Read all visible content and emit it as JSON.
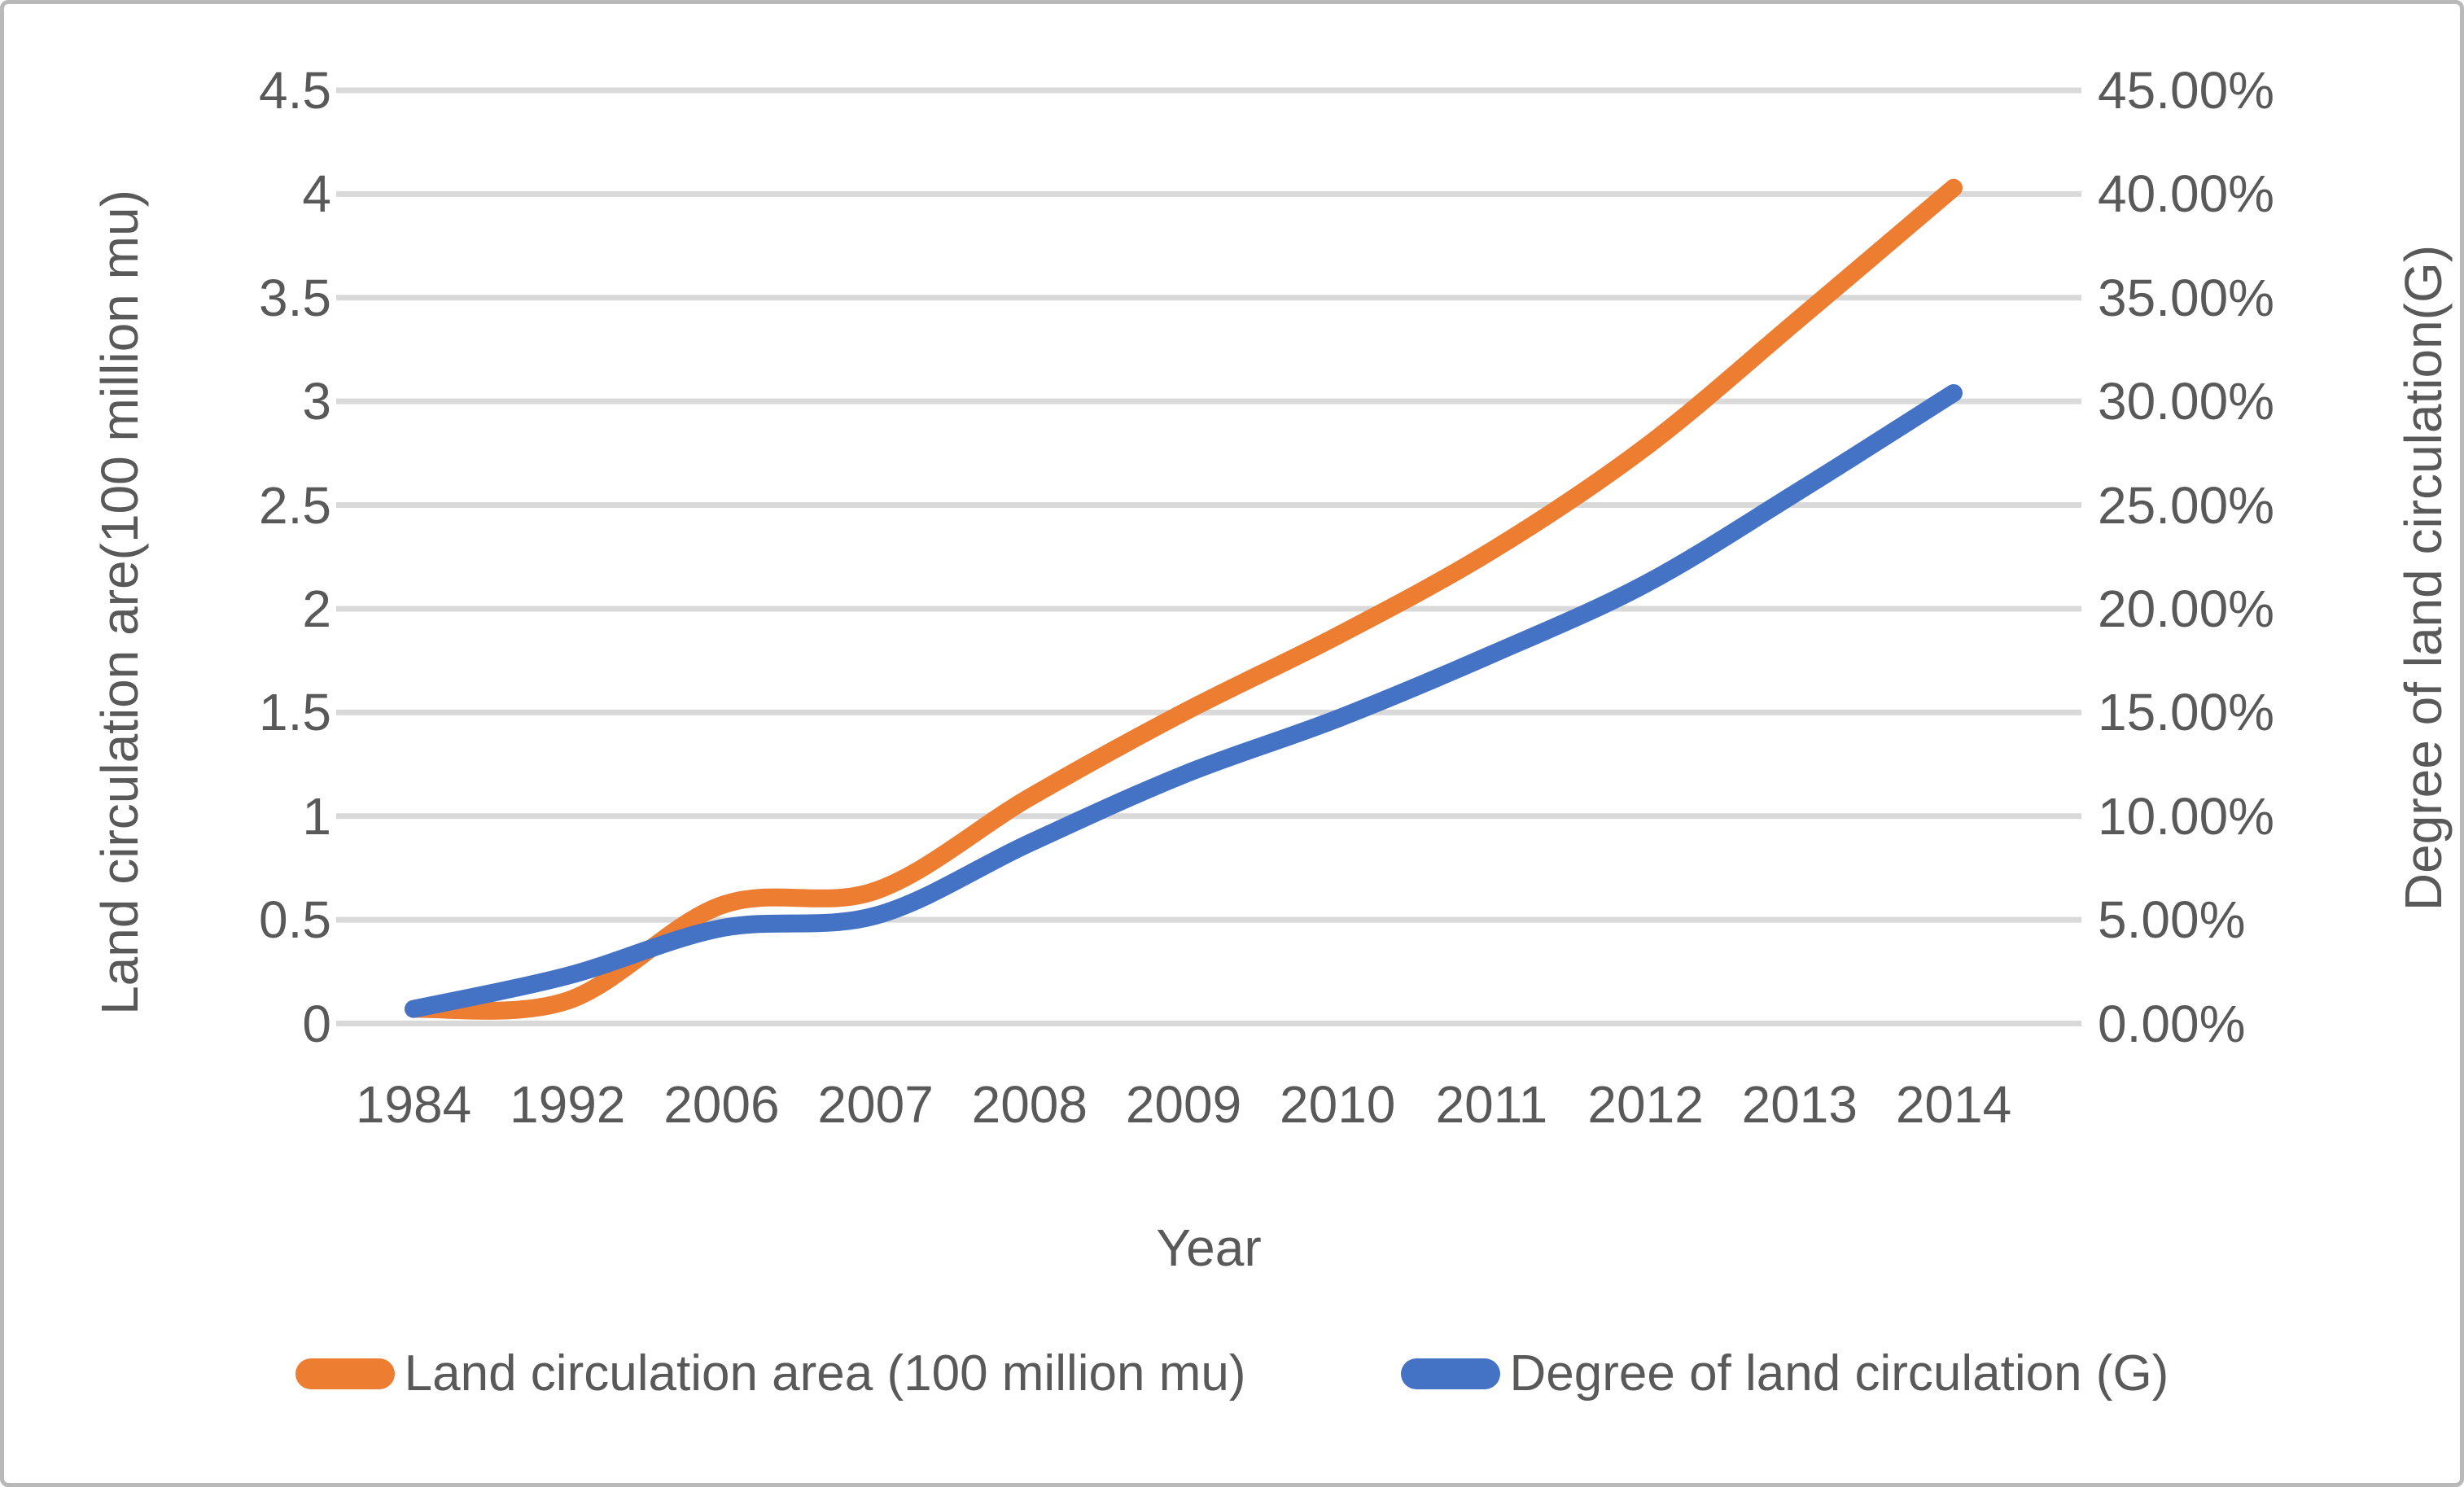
{
  "figure": {
    "background": "#ffffff",
    "border_color": "#b9b9b9",
    "text_color": "#595959",
    "gridline_color": "#d9d9d9"
  },
  "chart_data": {
    "type": "line",
    "smooth": true,
    "grid": true,
    "legend_position": "bottom",
    "categories": [
      "1984",
      "1992",
      "2006",
      "2007",
      "2008",
      "2009",
      "2010",
      "2011",
      "2012",
      "2013",
      "2014"
    ],
    "x_axis": {
      "title": "Year"
    },
    "left_axis": {
      "title": "Land circulation are(100 million mu)",
      "min": 0,
      "max": 4.5,
      "tick_step": 0.5,
      "ticks_top_to_bottom": [
        "4.5",
        "4",
        "3.5",
        "3",
        "2.5",
        "2",
        "1.5",
        "1",
        "0.5",
        "0"
      ]
    },
    "right_axis": {
      "title": "Degree of land circulation(G)",
      "min": 0,
      "max": 45,
      "tick_step": 5,
      "ticks_top_to_bottom": [
        "45.00%",
        "40.00%",
        "35.00%",
        "30.00%",
        "25.00%",
        "20.00%",
        "15.00%",
        "10.00%",
        "5.00%",
        "0.00%"
      ]
    },
    "series": [
      {
        "name": "Land circulation area (100 million mu)",
        "axis": "left",
        "color": "#ED7D31",
        "values": [
          0.07,
          0.11,
          0.57,
          0.64,
          1.09,
          1.5,
          1.87,
          2.28,
          2.78,
          3.4,
          4.03
        ]
      },
      {
        "name": "Degree of land circulation (G)",
        "axis": "right",
        "color": "#4472C4",
        "values": [
          0.7,
          2.3,
          4.6,
          5.2,
          8.7,
          12.0,
          14.7,
          17.8,
          21.2,
          25.7,
          30.4
        ]
      }
    ],
    "legend": [
      {
        "label": "Land circulation area (100 million mu)",
        "color": "#ED7D31"
      },
      {
        "label": "Degree of land circulation (G)",
        "color": "#4472C4"
      }
    ]
  }
}
